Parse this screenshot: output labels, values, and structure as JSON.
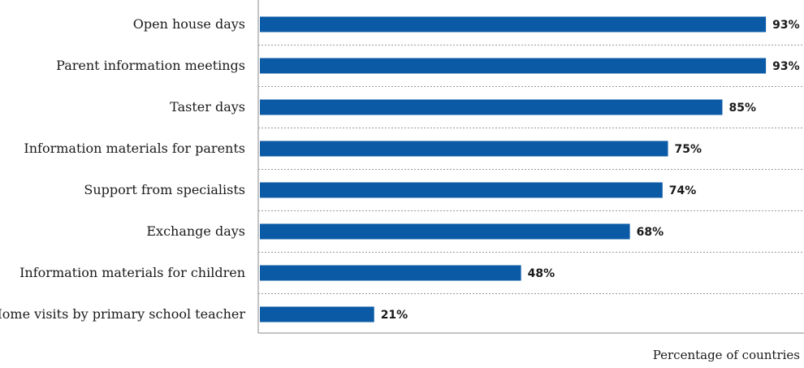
{
  "chart_data": {
    "type": "bar",
    "orientation": "horizontal",
    "categories": [
      "Open house days",
      "Parent information meetings",
      "Taster days",
      "Information materials for parents",
      "Support from specialists",
      "Exchange days",
      "Information materials for children",
      "Home visits by primary school teacher"
    ],
    "values": [
      93,
      93,
      85,
      75,
      74,
      68,
      48,
      21
    ],
    "value_labels": [
      "93%",
      "93%",
      "85%",
      "75%",
      "74%",
      "68%",
      "48%",
      "21%"
    ],
    "xlabel": "Percentage of countries",
    "xlim": [
      0,
      100
    ],
    "bar_color": "#0b5aa6",
    "grid": "dotted separators between bars"
  }
}
